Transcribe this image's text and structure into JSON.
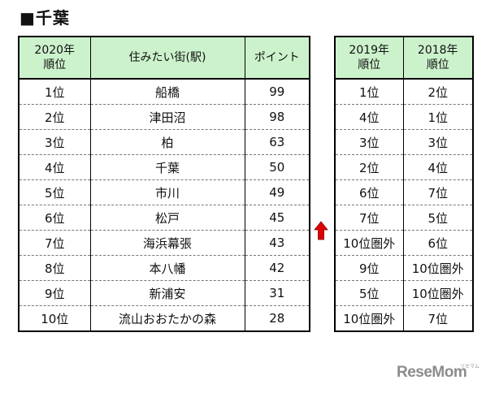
{
  "page_title": "■千葉",
  "ranking_table": {
    "headers": {
      "rank_2020": "2020年\n順位",
      "station": "住みたい街(駅)",
      "points": "ポイント"
    },
    "rows": [
      {
        "rank": "1位",
        "station": "船橋",
        "points": "99"
      },
      {
        "rank": "2位",
        "station": "津田沼",
        "points": "98"
      },
      {
        "rank": "3位",
        "station": "柏",
        "points": "63"
      },
      {
        "rank": "4位",
        "station": "千葉",
        "points": "50"
      },
      {
        "rank": "5位",
        "station": "市川",
        "points": "49"
      },
      {
        "rank": "6位",
        "station": "松戸",
        "points": "45"
      },
      {
        "rank": "7位",
        "station": "海浜幕張",
        "points": "43"
      },
      {
        "rank": "8位",
        "station": "本八幡",
        "points": "42"
      },
      {
        "rank": "9位",
        "station": "新浦安",
        "points": "31"
      },
      {
        "rank": "10位",
        "station": "流山おおたかの森",
        "points": "28"
      }
    ]
  },
  "history_table": {
    "headers": {
      "rank_2019": "2019年\n順位",
      "rank_2018": "2018年\n順位"
    },
    "rows": [
      {
        "rank_2019": "1位",
        "rank_2018": "2位"
      },
      {
        "rank_2019": "4位",
        "rank_2018": "1位"
      },
      {
        "rank_2019": "3位",
        "rank_2018": "3位"
      },
      {
        "rank_2019": "2位",
        "rank_2018": "4位"
      },
      {
        "rank_2019": "6位",
        "rank_2018": "7位"
      },
      {
        "rank_2019": "7位",
        "rank_2018": "5位"
      },
      {
        "rank_2019": "10位圏外",
        "rank_2018": "6位"
      },
      {
        "rank_2019": "9位",
        "rank_2018": "10位圏外"
      },
      {
        "rank_2019": "5位",
        "rank_2018": "10位圏外"
      },
      {
        "rank_2019": "10位圏外",
        "rank_2018": "7位"
      }
    ]
  },
  "up_arrow": {
    "icon": "up-arrow-icon",
    "color": "#e00000"
  },
  "logo": {
    "text": "ReseMom",
    "sub": "リセマム"
  },
  "colors": {
    "header_bg": "#ccf2cc"
  }
}
